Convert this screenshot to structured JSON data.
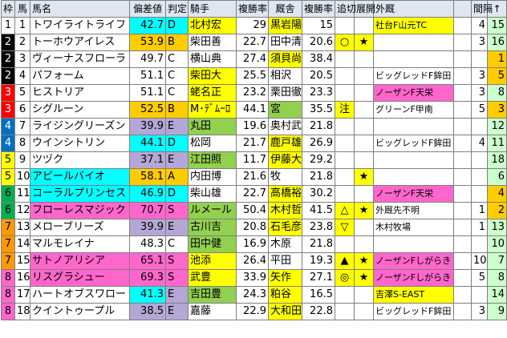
{
  "headers": [
    "枠",
    "馬",
    "馬名",
    "偏差値",
    "判定",
    "騎手",
    "複勝率",
    "厩舎",
    "複勝率",
    "追切",
    "展開",
    "外厩",
    "",
    "間隔",
    "↑"
  ],
  "colors": {
    "waku1": "#ffffff",
    "waku2": "#000000",
    "waku3": "#ff0000",
    "waku4": "#0070c0",
    "waku5": "#ffff00",
    "waku6": "#00b050",
    "waku7": "#ff9900",
    "waku8": "#ff66cc",
    "score_bars": "#b4a7d6",
    "highlight_yellow": "#ffff00",
    "pink": "#ff66cc",
    "green": "#92d050",
    "cyan": "#00ffff"
  },
  "rows": [
    {
      "waku": "1",
      "uma": "1",
      "name": "トワイライトライフ",
      "score": "42.7",
      "grade": "D",
      "jockey": "北村宏",
      "jrate": "29",
      "stable": "黒岩陽",
      "srate": "15",
      "oikiri": "",
      "tenkai": "",
      "gaikyu": "社台F山元TC",
      "kankaku": "4",
      "up": "15"
    },
    {
      "waku": "2",
      "uma": "2",
      "name": "トーホウアイレス",
      "score": "53.9",
      "grade": "B",
      "jockey": "柴田善",
      "jrate": "22.7",
      "stable": "田中清",
      "srate": "20.6",
      "oikiri": "○",
      "tenkai": "★",
      "gaikyu": "",
      "kankaku": "3",
      "up": "16"
    },
    {
      "waku": "2",
      "uma": "3",
      "name": "ヴィーナスフローラ",
      "score": "49.7",
      "grade": "C",
      "jockey": "横山典",
      "jrate": "27.4",
      "stable": "須貝尚",
      "srate": "38.4",
      "oikiri": "",
      "tenkai": "",
      "gaikyu": "",
      "kankaku": "",
      "up": "1"
    },
    {
      "waku": "2",
      "uma": "4",
      "name": "パフォーム",
      "score": "51.1",
      "grade": "C",
      "jockey": "柴田大",
      "jrate": "25.5",
      "stable": "相沢",
      "srate": "20.5",
      "oikiri": "",
      "tenkai": "",
      "gaikyu": "ビッグレッドF鉾田",
      "kankaku": "3",
      "up": "5"
    },
    {
      "waku": "3",
      "uma": "5",
      "name": "ヒストリア",
      "score": "51.1",
      "grade": "C",
      "jockey": "蛯名正",
      "jrate": "23.2",
      "stable": "栗田徹",
      "srate": "23.3",
      "oikiri": "",
      "tenkai": "",
      "gaikyu": "ノーザンF天栄",
      "kankaku": "3",
      "up": "8"
    },
    {
      "waku": "3",
      "uma": "6",
      "name": "シグルーン",
      "score": "52.5",
      "grade": "B",
      "jockey": "M･ﾃﾞﾑｰﾛ",
      "jrate": "44.1",
      "stable": "宮",
      "srate": "35.5",
      "oikiri": "注",
      "tenkai": "",
      "gaikyu": "グリーンF甲南",
      "kankaku": "5",
      "up": "3"
    },
    {
      "waku": "4",
      "uma": "7",
      "name": "ライジングリーズン",
      "score": "39.9",
      "grade": "E",
      "jockey": "丸田",
      "jrate": "19.6",
      "stable": "奥村武",
      "srate": "21.8",
      "oikiri": "",
      "tenkai": "",
      "gaikyu": "",
      "kankaku": "",
      "up": "12"
    },
    {
      "waku": "4",
      "uma": "8",
      "name": "ウインシトリン",
      "score": "44.1",
      "grade": "D",
      "jockey": "松岡",
      "jrate": "21.7",
      "stable": "鹿戸雄",
      "srate": "26.9",
      "oikiri": "",
      "tenkai": "",
      "gaikyu": "ビッグレッドF鉾田",
      "kankaku": "4",
      "up": "11"
    },
    {
      "waku": "5",
      "uma": "9",
      "name": "ツヅク",
      "score": "37.1",
      "grade": "E",
      "jockey": "江田照",
      "jrate": "11.7",
      "stable": "伊藤大",
      "srate": "29.2",
      "oikiri": "",
      "tenkai": "",
      "gaikyu": "",
      "kankaku": "",
      "up": "18"
    },
    {
      "waku": "5",
      "uma": "10",
      "name": "アピールバイオ",
      "score": "58.1",
      "grade": "A",
      "jockey": "内田博",
      "jrate": "21.6",
      "stable": "牧",
      "srate": "21.8",
      "oikiri": "",
      "tenkai": "★",
      "gaikyu": "",
      "kankaku": "",
      "up": "6"
    },
    {
      "waku": "6",
      "uma": "11",
      "name": "コーラルプリンセス",
      "score": "46.9",
      "grade": "D",
      "jockey": "柴山雄",
      "jrate": "22.7",
      "stable": "高橋裕",
      "srate": "30.2",
      "oikiri": "",
      "tenkai": "",
      "gaikyu": "ノーザンF天栄",
      "kankaku": "",
      "up": "4"
    },
    {
      "waku": "6",
      "uma": "12",
      "name": "フローレスマジック",
      "score": "70.7",
      "grade": "S",
      "jockey": "ルメール",
      "jrate": "50.4",
      "stable": "木村哲",
      "srate": "41.5",
      "oikiri": "△",
      "tenkai": "★",
      "gaikyu": "外厩先不明",
      "kankaku": "1",
      "up": "2"
    },
    {
      "waku": "7",
      "uma": "13",
      "name": "メローブリーズ",
      "score": "39.9",
      "grade": "E",
      "jockey": "古川吉",
      "jrate": "20.8",
      "stable": "石毛彦",
      "srate": "23.8",
      "oikiri": "▽",
      "tenkai": "",
      "gaikyu": "木村牧場",
      "kankaku": "1",
      "up": "13"
    },
    {
      "waku": "7",
      "uma": "14",
      "name": "マルモレイナ",
      "score": "48.3",
      "grade": "C",
      "jockey": "田中健",
      "jrate": "16.9",
      "stable": "木原",
      "srate": "21.8",
      "oikiri": "",
      "tenkai": "",
      "gaikyu": "",
      "kankaku": "",
      "up": "10"
    },
    {
      "waku": "7",
      "uma": "15",
      "name": "サトノアリシア",
      "score": "65.1",
      "grade": "S",
      "jockey": "池添",
      "jrate": "26.4",
      "stable": "平田",
      "srate": "19.3",
      "oikiri": "▲",
      "tenkai": "★",
      "gaikyu": "ノーザンFしがらき",
      "kankaku": "10",
      "up": "7"
    },
    {
      "waku": "8",
      "uma": "16",
      "name": "リスグラシュー",
      "score": "69.3",
      "grade": "S",
      "jockey": "武豊",
      "jrate": "33.9",
      "stable": "矢作",
      "srate": "27.1",
      "oikiri": "◎",
      "tenkai": "★",
      "gaikyu": "ノーザンFしがらき",
      "kankaku": "5",
      "up": "8"
    },
    {
      "waku": "8",
      "uma": "17",
      "name": "ハートオブスワロー",
      "score": "41.3",
      "grade": "E",
      "jockey": "吉田豊",
      "jrate": "24.3",
      "stable": "粕谷",
      "srate": "16.5",
      "oikiri": "",
      "tenkai": "",
      "gaikyu": "吉澤S-EAST",
      "kankaku": "",
      "up": "14"
    },
    {
      "waku": "8",
      "uma": "18",
      "name": "クイントゥープル",
      "score": "38.5",
      "grade": "E",
      "jockey": "嘉藤",
      "jrate": "22.9",
      "stable": "大和田",
      "srate": "22.8",
      "oikiri": "",
      "tenkai": "",
      "gaikyu": "ビッグレッドF鉾田",
      "kankaku": "3",
      "up": "9"
    }
  ]
}
